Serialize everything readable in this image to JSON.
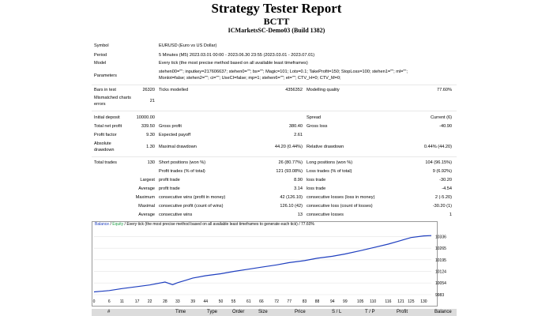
{
  "header": {
    "title": "Strategy Tester Report",
    "subtitle": "BCTT",
    "server": "ICMarketsSC-Demo03 (Build 1382)"
  },
  "settings": {
    "symbol_label": "Symbol",
    "symbol_value": "EURUSD (Euro vs US Dollar)",
    "period_label": "Period",
    "period_value": "5 Minutes (M5) 2023.03.01 00:00 - 2023.06.30 23:55 (2023.03.01 - 2023.07.01)",
    "model_label": "Model",
    "model_value": "Every tick (the most precise method based on all available least timeframes)",
    "parameters_label": "Parameters",
    "parameters_line1": "stehen00=\"\"; inputkey=217606637; stehen0=\"\"; bs=\"\"; Magic=101; Lots=0.1; TakeProfit=150; StopLoss=100; stehen1=\"\"; ml=\"\";",
    "parameters_line2": "Monlot=false; stehen2=\"\"; ci=\"\"; UseCI=false; mp=1; stehen6=\"\"; et=\"\"; CTV_H=0; CTV_M=0;"
  },
  "modelling": {
    "bars_label": "Bars in test",
    "bars_value": "26320",
    "ticks_label": "Ticks modelled",
    "ticks_value": "4356352",
    "quality_label": "Modelling quality",
    "quality_value": "77.60%",
    "mismatch_label_1": "Mismatched charts",
    "mismatch_label_2": "errors",
    "mismatch_value": "21"
  },
  "results": {
    "initial_deposit_label": "Initial deposit",
    "initial_deposit_value": "10000.00",
    "spread_label": "Spread",
    "spread_value": "Current (6)",
    "net_profit_label": "Total net profit",
    "net_profit_value": "339.50",
    "gross_profit_label": "Gross profit",
    "gross_profit_value": "380.40",
    "gross_loss_label": "Gross loss",
    "gross_loss_value": "-40.90",
    "profit_factor_label": "Profit factor",
    "profit_factor_value": "9.30",
    "expected_payoff_label": "Expected payoff",
    "expected_payoff_value": "2.61",
    "abs_dd_label_1": "Absolute",
    "abs_dd_label_2": "drawdown",
    "abs_dd_value": "1.30",
    "max_dd_label": "Maximal drawdown",
    "max_dd_value": "44.20 (0.44%)",
    "rel_dd_label": "Relative drawdown",
    "rel_dd_value": "0.44% (44.20)",
    "total_trades_label": "Total trades",
    "total_trades_value": "130",
    "short_label": "Short positions (won %)",
    "short_value": "26 (80.77%)",
    "long_label": "Long positions (won %)",
    "long_value": "104 (96.15%)",
    "profit_trades_label": "Profit trades (% of total)",
    "profit_trades_value": "121 (93.08%)",
    "loss_trades_label": "Loss trades (% of total)",
    "loss_trades_value": "9 (6.92%)",
    "largest_label": "Largest",
    "largest_profit_label": "profit trade",
    "largest_profit_value": "8.90",
    "largest_loss_label": "loss trade",
    "largest_loss_value": "-30.20",
    "average_label": "Average",
    "average_profit_label": "profit trade",
    "average_profit_value": "3.14",
    "average_loss_label": "loss trade",
    "average_loss_value": "-4.54",
    "maximum_label": "Maximum",
    "max_cons_wins_label": "consecutive wins (profit in money)",
    "max_cons_wins_value": "42 (126.10)",
    "max_cons_losses_label": "consecutive losses (loss in money)",
    "max_cons_losses_value": "2 (-5.20)",
    "maximal_label": "Maximal",
    "maximal_cons_profit_label": "consecutive profit (count of wins)",
    "maximal_cons_profit_value": "126.10 (42)",
    "maximal_cons_loss_label": "consecutive loss (count of losses)",
    "maximal_cons_loss_value": "-30.20 (1)",
    "avg_label": "Average",
    "avg_cons_wins_label": "consecutive wins",
    "avg_cons_wins_value": "13",
    "avg_cons_losses_label": "consecutive losses",
    "avg_cons_losses_value": "1"
  },
  "chart_legend": {
    "balance": "Balance",
    "divider": "/",
    "equity": "Equity",
    "rest": "/ Every tick (the most precise method based on all available least timeframes to generate each tick) / 77.60%"
  },
  "colors": {
    "balance": "#1f3fbf",
    "equity": "#22a04a",
    "grid": "#e4e4e4"
  },
  "chart_data": {
    "type": "line",
    "title": "",
    "xlabel": "",
    "ylabel": "",
    "xlim": [
      0,
      133
    ],
    "ylim": [
      9983,
      10386
    ],
    "x_ticks": [
      0,
      6,
      11,
      17,
      22,
      28,
      33,
      39,
      44,
      50,
      55,
      61,
      66,
      72,
      77,
      83,
      88,
      94,
      99,
      105,
      110,
      116,
      121,
      125,
      130
    ],
    "y_ticks": [
      9983,
      10054,
      10124,
      10195,
      10265,
      10336
    ],
    "grid": false,
    "series": [
      {
        "name": "Balance",
        "x": [
          0,
          6,
          11,
          17,
          22,
          28,
          31,
          33,
          36,
          39,
          44,
          50,
          55,
          61,
          66,
          72,
          77,
          83,
          88,
          94,
          99,
          105,
          110,
          116,
          121,
          125,
          130,
          133
        ],
        "y": [
          10000,
          10008,
          10020,
          10032,
          10042,
          10060,
          10044,
          10056,
          10070,
          10084,
          10098,
          10110,
          10124,
          10138,
          10150,
          10164,
          10178,
          10190,
          10204,
          10216,
          10230,
          10250,
          10268,
          10290,
          10312,
          10330,
          10340,
          10342
        ]
      }
    ]
  },
  "deals_table": {
    "headers": [
      "#",
      "Time",
      "Type",
      "Order",
      "Size",
      "Price",
      "S / L",
      "T / P",
      "Profit",
      "Balance"
    ]
  }
}
